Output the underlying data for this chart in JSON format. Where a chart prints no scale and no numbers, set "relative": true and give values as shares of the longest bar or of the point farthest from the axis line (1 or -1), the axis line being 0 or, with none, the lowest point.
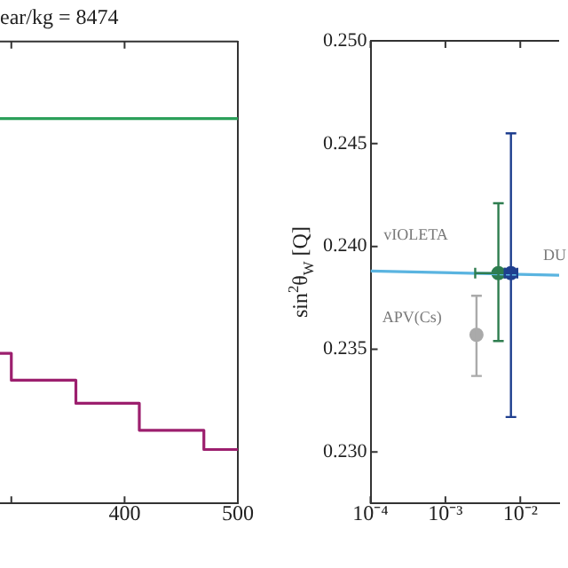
{
  "chart_data": [
    {
      "type": "step",
      "title": "ear/kg = 8474",
      "relative": true,
      "xlim": [
        290,
        500
      ],
      "xticks": [
        {
          "value": 300,
          "label": null
        },
        400,
        500
      ],
      "grid": false,
      "legend": false,
      "series": [
        {
          "type": "line",
          "color": "#2ca05a",
          "x": [
            290,
            500
          ],
          "values": [
            1,
            1
          ]
        },
        {
          "color": "#9c1f6e",
          "x": [
            290,
            300,
            357,
            413,
            470,
            500
          ],
          "values": [
            0.39,
            0.32,
            0.26,
            0.19,
            0.14,
            0.14
          ]
        }
      ]
    },
    {
      "type": "scatter",
      "ylabel": "sin$^{2}$θ$_{W}$ [Q]",
      "log": "x",
      "xlim": [
        0.0001,
        0.033
      ],
      "xticks": [
        {
          "value": 0.0001,
          "label": "10⁻⁴"
        },
        {
          "value": 0.001,
          "label": "10⁻³"
        },
        {
          "value": 0.01,
          "label": "10⁻²"
        }
      ],
      "ylim": [
        0.2275,
        0.25
      ],
      "yticks": [
        {
          "value": 0.23,
          "label": "0.230"
        },
        0.235,
        {
          "value": 0.24,
          "label": "0.240"
        },
        0.245,
        {
          "value": 0.25,
          "label": "0.250"
        }
      ],
      "grid": false,
      "legend": false,
      "annotations": [
        "vIOLETA",
        "APV(Cs)",
        "DU"
      ],
      "series": [
        {
          "type": "line",
          "color": "#5ab4e0",
          "x": [
            0.0001,
            0.033
          ],
          "values": [
            0.2388,
            0.2386
          ]
        },
        {
          "color": "#aaaaaa",
          "x": [
            0.0026
          ],
          "values": [
            0.2357
          ],
          "errors": [
            [
              0.2337,
              0.2376
            ]
          ]
        },
        {
          "color": "#2e7d4f",
          "x": [
            0.0051
          ],
          "values": [
            0.2387
          ],
          "errors": [
            [
              0.2354,
              0.2421
            ]
          ],
          "xerrors": [
            [
              0.0025,
              0.0062
            ]
          ]
        },
        {
          "color": "#1f3f8f",
          "x": [
            0.0075
          ],
          "values": [
            0.2387
          ],
          "errors": [
            [
              0.2317,
              0.2455
            ]
          ],
          "xerrors": [
            [
              0.0062,
              0.0091
            ]
          ]
        }
      ]
    }
  ]
}
